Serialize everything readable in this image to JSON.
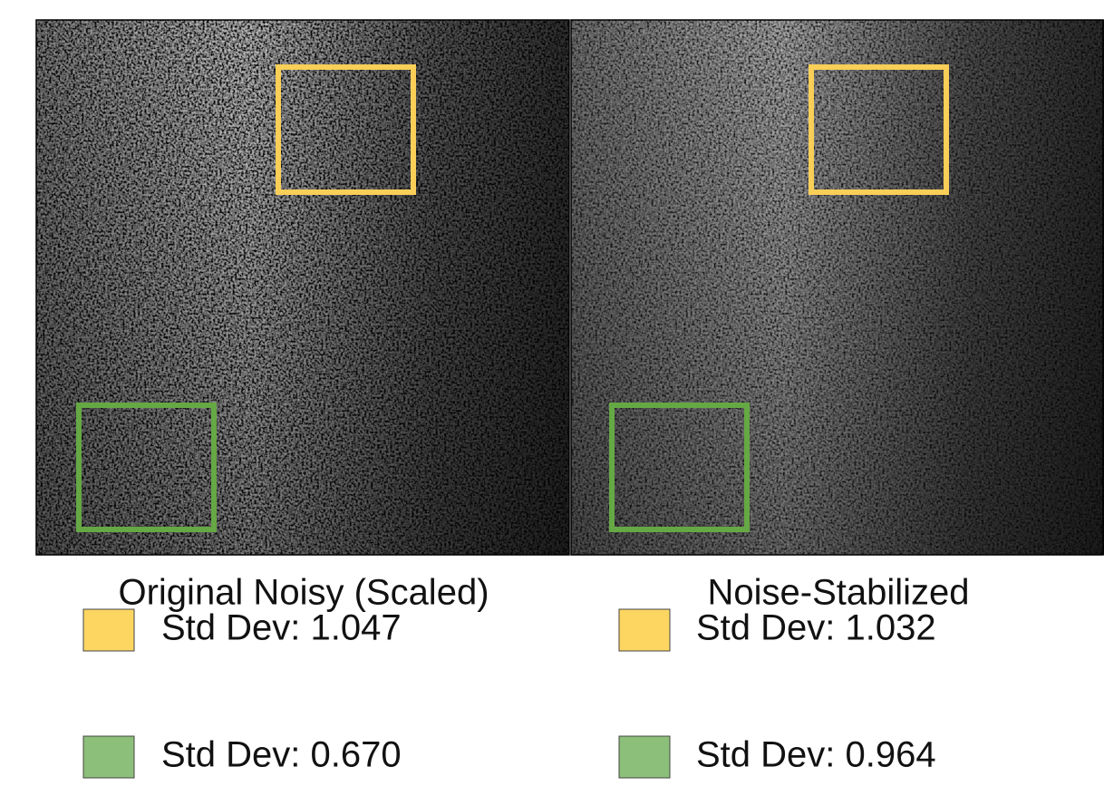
{
  "panels": [
    {
      "caption": "Original Noisy (Scaled)",
      "legend": [
        {
          "label": "Std Dev: 1.047"
        },
        {
          "label": "Std Dev: 0.670"
        }
      ]
    },
    {
      "caption": "Noise-Stabilized",
      "legend": [
        {
          "label": "Std Dev: 1.032"
        },
        {
          "label": "Std Dev: 0.964"
        }
      ]
    }
  ]
}
